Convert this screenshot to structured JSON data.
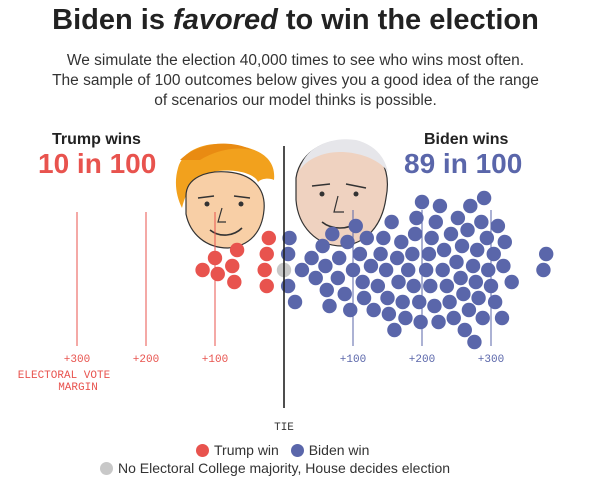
{
  "header": {
    "title_prefix": "Biden is ",
    "title_emph": "favored",
    "title_suffix": " to win the election",
    "subtitle_1": "We simulate the election 40,000 times to see who wins most often.",
    "subtitle_2": "The sample of 100 outcomes below gives you a good idea of the range",
    "subtitle_3": "of scenarios our model thinks is possible."
  },
  "trump": {
    "label": "Trump wins",
    "count": "10 in 100",
    "color": "#e8534e"
  },
  "biden": {
    "label": "Biden wins",
    "count": "89 in 100",
    "color": "#5a66aa"
  },
  "tie_color": "#c8c8c8",
  "chart_data": {
    "type": "scatter",
    "description_units": "electoral vote margin (negative = Trump, positive = Biden)",
    "axis_ticks": [
      {
        "value": -300,
        "label": "+300",
        "side": "trump"
      },
      {
        "value": -200,
        "label": "+200",
        "side": "trump"
      },
      {
        "value": -100,
        "label": "+100",
        "side": "trump"
      },
      {
        "value": 100,
        "label": "+100",
        "side": "biden"
      },
      {
        "value": 200,
        "label": "+200",
        "side": "biden"
      },
      {
        "value": 300,
        "label": "+300",
        "side": "biden"
      }
    ],
    "axis_label_1": "ELECTORAL VOTE",
    "axis_label_2": "MARGIN",
    "center_label": "TIE",
    "trump_outcomes": [
      -118,
      -100,
      -96,
      -75,
      -72,
      -68,
      -28,
      -25,
      -25,
      -22
    ],
    "tie_outcomes": [
      0
    ],
    "biden_outcomes": [
      6,
      6,
      8,
      16,
      26,
      40,
      46,
      56,
      60,
      62,
      66,
      70,
      78,
      80,
      88,
      92,
      96,
      100,
      104,
      110,
      114,
      116,
      120,
      126,
      130,
      136,
      140,
      144,
      148,
      150,
      152,
      156,
      160,
      164,
      166,
      170,
      172,
      176,
      180,
      186,
      188,
      190,
      192,
      196,
      198,
      200,
      206,
      210,
      212,
      214,
      218,
      220,
      224,
      226,
      230,
      232,
      236,
      240,
      242,
      246,
      250,
      252,
      256,
      258,
      260,
      262,
      266,
      268,
      270,
      274,
      276,
      278,
      280,
      282,
      286,
      288,
      290,
      294,
      296,
      300,
      304,
      306,
      310,
      316,
      318,
      320,
      330,
      376,
      380
    ]
  },
  "legend": {
    "trump_label": "Trump win",
    "biden_label": "Biden win",
    "tie_label": "No Electoral College majority, House decides election"
  }
}
